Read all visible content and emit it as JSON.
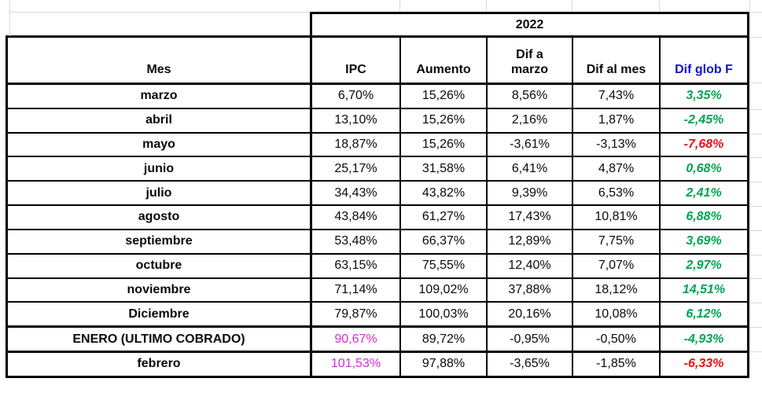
{
  "palette": {
    "green": "#00a452",
    "red": "#e61212",
    "magenta": "#d92cd4",
    "blue": "#1111d0",
    "border_black": "#000000",
    "excel_gridline": "#d9d9d9"
  },
  "table": {
    "year_header": "2022",
    "columns": {
      "mes": "Mes",
      "ipc": "IPC",
      "aumento": "Aumento",
      "dif_a_marzo": "Dif a\nmarzo",
      "dif_al_mes": "Dif al mes",
      "dif_glob_f": "Dif glob F"
    },
    "rows": [
      {
        "mes": "marzo",
        "ipc": "6,70%",
        "aumento": "15,26%",
        "dif_a_marzo": "8,56%",
        "dif_al_mes": "7,43%",
        "dif_glob": "3,35%",
        "dif_glob_color": "green"
      },
      {
        "mes": "abril",
        "ipc": "13,10%",
        "aumento": "15,26%",
        "dif_a_marzo": "2,16%",
        "dif_al_mes": "1,87%",
        "dif_glob": "-2,45%",
        "dif_glob_color": "green"
      },
      {
        "mes": "mayo",
        "ipc": "18,87%",
        "aumento": "15,26%",
        "dif_a_marzo": "-3,61%",
        "dif_al_mes": "-3,13%",
        "dif_glob": "-7,68%",
        "dif_glob_color": "red"
      },
      {
        "mes": "junio",
        "ipc": "25,17%",
        "aumento": "31,58%",
        "dif_a_marzo": "6,41%",
        "dif_al_mes": "4,87%",
        "dif_glob": "0,68%",
        "dif_glob_color": "green"
      },
      {
        "mes": "julio",
        "ipc": "34,43%",
        "aumento": "43,82%",
        "dif_a_marzo": "9,39%",
        "dif_al_mes": "6,53%",
        "dif_glob": "2,41%",
        "dif_glob_color": "green"
      },
      {
        "mes": "agosto",
        "ipc": "43,84%",
        "aumento": "61,27%",
        "dif_a_marzo": "17,43%",
        "dif_al_mes": "10,81%",
        "dif_glob": "6,88%",
        "dif_glob_color": "green"
      },
      {
        "mes": "septiembre",
        "ipc": "53,48%",
        "aumento": "66,37%",
        "dif_a_marzo": "12,89%",
        "dif_al_mes": "7,75%",
        "dif_glob": "3,69%",
        "dif_glob_color": "green"
      },
      {
        "mes": "octubre",
        "ipc": "63,15%",
        "aumento": "75,55%",
        "dif_a_marzo": "12,40%",
        "dif_al_mes": "7,07%",
        "dif_glob": "2,97%",
        "dif_glob_color": "green"
      },
      {
        "mes": "noviembre",
        "ipc": "71,14%",
        "aumento": "109,02%",
        "dif_a_marzo": "37,88%",
        "dif_al_mes": "18,12%",
        "dif_glob": "14,51%",
        "dif_glob_color": "green"
      },
      {
        "mes": "Diciembre",
        "ipc": "79,87%",
        "aumento": "100,03%",
        "dif_a_marzo": "20,16%",
        "dif_al_mes": "10,08%",
        "dif_glob": "6,12%",
        "dif_glob_color": "green"
      },
      {
        "mes": "ENERO (ULTIMO COBRADO)",
        "ipc": "90,67%",
        "ipc_color": "magenta",
        "aumento": "89,72%",
        "dif_a_marzo": "-0,95%",
        "dif_al_mes": "-0,50%",
        "dif_glob": "-4,93%",
        "dif_glob_color": "green",
        "thick_top": true
      },
      {
        "mes": "febrero",
        "ipc": "101,53%",
        "ipc_color": "magenta",
        "aumento": "97,88%",
        "dif_a_marzo": "-3,65%",
        "dif_al_mes": "-1,85%",
        "dif_glob": "-6,33%",
        "dif_glob_color": "red",
        "thick_top": true
      }
    ]
  }
}
